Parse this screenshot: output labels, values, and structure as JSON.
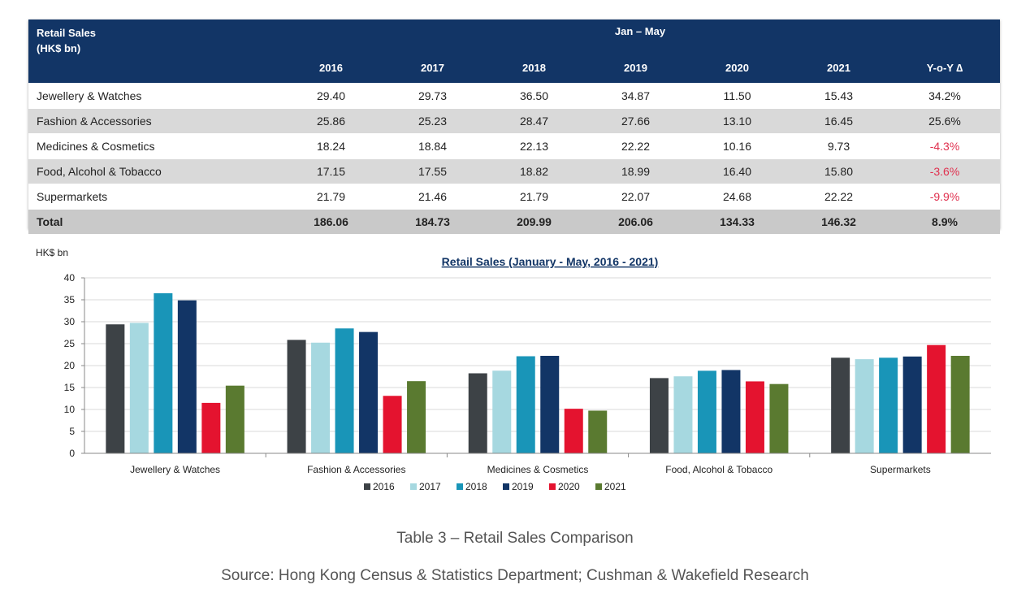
{
  "table": {
    "corner_line1": "Retail Sales",
    "corner_line2": "(HK$ bn)",
    "period": "Jan – May",
    "columns": [
      "2016",
      "2017",
      "2018",
      "2019",
      "2020",
      "2021",
      "Y-o-Y ∆"
    ],
    "rows": [
      {
        "label": "Jewellery & Watches",
        "values": [
          "29.40",
          "29.73",
          "36.50",
          "34.87",
          "11.50",
          "15.43",
          "34.2%"
        ]
      },
      {
        "label": "Fashion & Accessories",
        "values": [
          "25.86",
          "25.23",
          "28.47",
          "27.66",
          "13.10",
          "16.45",
          "25.6%"
        ]
      },
      {
        "label": "Medicines & Cosmetics",
        "values": [
          "18.24",
          "18.84",
          "22.13",
          "22.22",
          "10.16",
          "9.73",
          "-4.3%"
        ]
      },
      {
        "label": "Food, Alcohol & Tobacco",
        "values": [
          "17.15",
          "17.55",
          "18.82",
          "18.99",
          "16.40",
          "15.80",
          "-3.6%"
        ]
      },
      {
        "label": "Supermarkets",
        "values": [
          "21.79",
          "21.46",
          "21.79",
          "22.07",
          "24.68",
          "22.22",
          "-9.9%"
        ]
      }
    ],
    "total": {
      "label": "Total",
      "values": [
        "186.06",
        "184.73",
        "209.99",
        "206.06",
        "134.33",
        "146.32",
        "8.9%"
      ]
    }
  },
  "chart_data": {
    "type": "bar",
    "title": "Retail Sales (January - May, 2016 - 2021)",
    "ylabel": "HK$ bn",
    "xlabel": "",
    "ylim": [
      0,
      40
    ],
    "yticks": [
      0,
      5,
      10,
      15,
      20,
      25,
      30,
      35,
      40
    ],
    "grid": true,
    "legend_position": "bottom",
    "categories": [
      "Jewellery & Watches",
      "Fashion & Accessories",
      "Medicines & Cosmetics",
      "Food, Alcohol & Tobacco",
      "Supermarkets"
    ],
    "series": [
      {
        "name": "2016",
        "color": "#3d4246",
        "values": [
          29.4,
          25.86,
          18.24,
          17.15,
          21.79
        ]
      },
      {
        "name": "2017",
        "color": "#a6d8e0",
        "values": [
          29.73,
          25.23,
          18.84,
          17.55,
          21.46
        ]
      },
      {
        "name": "2018",
        "color": "#1995b8",
        "values": [
          36.5,
          28.47,
          22.13,
          18.82,
          21.79
        ]
      },
      {
        "name": "2019",
        "color": "#123566",
        "values": [
          34.87,
          27.66,
          22.22,
          18.99,
          22.07
        ]
      },
      {
        "name": "2020",
        "color": "#e4132f",
        "values": [
          11.5,
          13.1,
          10.16,
          16.4,
          24.68
        ]
      },
      {
        "name": "2021",
        "color": "#5a7a30",
        "values": [
          15.43,
          16.45,
          9.73,
          15.8,
          22.22
        ]
      }
    ]
  },
  "captions": {
    "title": "Table 3 – Retail Sales Comparison",
    "source": "Source: Hong Kong Census & Statistics Department; Cushman & Wakefield Research"
  }
}
